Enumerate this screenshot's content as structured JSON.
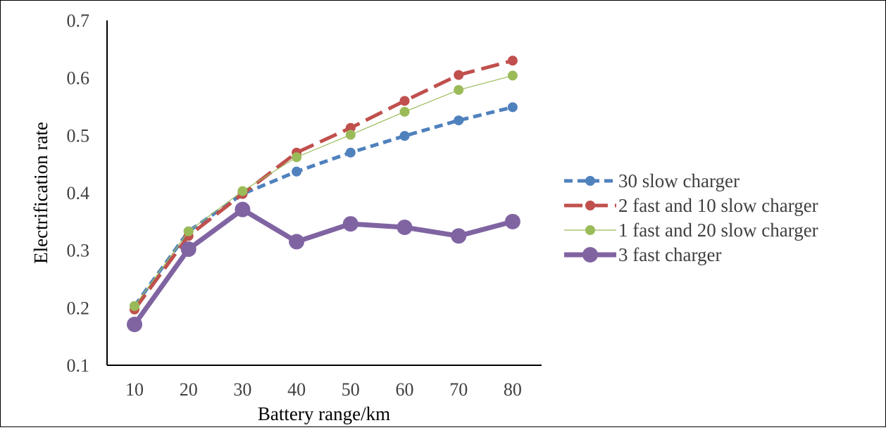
{
  "chart_data": {
    "type": "line",
    "title": "",
    "xlabel": "Battery range/km",
    "ylabel": "Electrification rate",
    "categories": [
      "10",
      "20",
      "30",
      "40",
      "50",
      "60",
      "70",
      "80"
    ],
    "ylim": [
      0.1,
      0.7
    ],
    "yticks": [
      "0.1",
      "0.2",
      "0.3",
      "0.4",
      "0.5",
      "0.6",
      "0.7"
    ],
    "grid": false,
    "legend_position": "right",
    "series": [
      {
        "name": "30 slow charger",
        "values": [
          0.203,
          0.333,
          0.398,
          0.437,
          0.47,
          0.499,
          0.526,
          0.549
        ],
        "color": "#4F81BD",
        "line_style": "dashed",
        "marker": "circle"
      },
      {
        "name": "2 fast and 10 slow charger",
        "values": [
          0.197,
          0.325,
          0.398,
          0.47,
          0.513,
          0.56,
          0.605,
          0.63
        ],
        "color": "#C0504D",
        "line_style": "long-dash",
        "marker": "circle"
      },
      {
        "name": "1 fast and 20 slow charger",
        "values": [
          0.203,
          0.333,
          0.403,
          0.462,
          0.501,
          0.541,
          0.579,
          0.604
        ],
        "color": "#9BBB59",
        "line_style": "solid-thin",
        "marker": "circle"
      },
      {
        "name": "3 fast charger",
        "values": [
          0.171,
          0.302,
          0.371,
          0.315,
          0.346,
          0.34,
          0.325,
          0.35
        ],
        "color": "#8064A2",
        "line_style": "solid-thick",
        "marker": "circle"
      }
    ]
  }
}
